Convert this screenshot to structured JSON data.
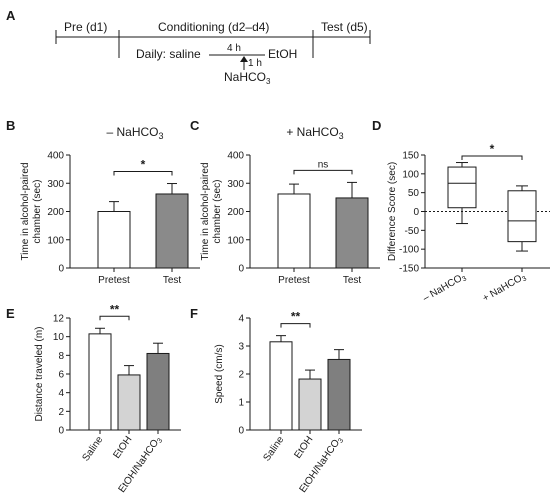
{
  "panel_a": {
    "letter": "A",
    "segments": [
      "Pre (d1)",
      "Conditioning (d2–d4)",
      "Test (d5)"
    ],
    "daily_label": "Daily: saline",
    "gap_label": "4 h",
    "ethanol_label": "EtOH",
    "arrow_label": "1 h",
    "nahco3_label": "NaHCO",
    "nahco3_sub": "3"
  },
  "chart_data": [
    {
      "id": "B",
      "letter": "B",
      "type": "bar",
      "title": "– NaHCO",
      "title_sub": "3",
      "ylabel": [
        "Time in alcohol-paired",
        "chamber (sec)"
      ],
      "categories": [
        "Pretest",
        "Test"
      ],
      "values": [
        200,
        262
      ],
      "errors": [
        35,
        37
      ],
      "colors": [
        "#ffffff",
        "#8a8a8a"
      ],
      "ylim": [
        0,
        400
      ],
      "yticks": [
        0,
        100,
        200,
        300,
        400
      ],
      "significance": "*"
    },
    {
      "id": "C",
      "letter": "C",
      "type": "bar",
      "title": "+ NaHCO",
      "title_sub": "3",
      "ylabel": [
        "Time in alcohol-paired",
        "chamber (sec)"
      ],
      "categories": [
        "Pretest",
        "Test"
      ],
      "values": [
        262,
        248
      ],
      "errors": [
        35,
        55
      ],
      "colors": [
        "#ffffff",
        "#8a8a8a"
      ],
      "ylim": [
        0,
        400
      ],
      "yticks": [
        0,
        100,
        200,
        300,
        400
      ],
      "significance": "ns"
    },
    {
      "id": "D",
      "letter": "D",
      "type": "box",
      "ylabel": [
        "Difference Score (sec)"
      ],
      "categories": [
        {
          "main": "– NaHCO",
          "sub": "3"
        },
        {
          "main": "+ NaHCO",
          "sub": "3"
        }
      ],
      "boxes": [
        {
          "min": -32,
          "q1": 10,
          "median": 75,
          "q3": 118,
          "max": 130
        },
        {
          "min": -105,
          "q1": -80,
          "median": -25,
          "q3": 55,
          "max": 68
        }
      ],
      "ylim": [
        -150,
        150
      ],
      "yticks": [
        -150,
        -100,
        -50,
        0,
        50,
        100,
        150
      ],
      "zero_line": true,
      "significance": "*"
    },
    {
      "id": "E",
      "letter": "E",
      "type": "bar",
      "ylabel": [
        "Distance traveled (m)"
      ],
      "categories": [
        "Saline",
        "EtOH",
        "EtOH/NaHCO"
      ],
      "category_subs": [
        "",
        "",
        "3"
      ],
      "values": [
        10.3,
        5.9,
        8.2
      ],
      "errors": [
        0.6,
        1.0,
        1.1
      ],
      "colors": [
        "#ffffff",
        "#d3d3d3",
        "#7f7f7f"
      ],
      "ylim": [
        0,
        12
      ],
      "yticks": [
        0,
        2,
        4,
        6,
        8,
        10,
        12
      ],
      "significance": "**"
    },
    {
      "id": "F",
      "letter": "F",
      "type": "bar",
      "ylabel": [
        "Speed (cm/s)"
      ],
      "categories": [
        "Saline",
        "EtOH",
        "EtOH/NaHCO"
      ],
      "category_subs": [
        "",
        "",
        "3"
      ],
      "values": [
        3.15,
        1.82,
        2.52
      ],
      "errors": [
        0.22,
        0.32,
        0.35
      ],
      "colors": [
        "#ffffff",
        "#d3d3d3",
        "#7f7f7f"
      ],
      "ylim": [
        0,
        4
      ],
      "yticks": [
        0,
        1,
        2,
        3,
        4
      ],
      "significance": "**"
    }
  ]
}
